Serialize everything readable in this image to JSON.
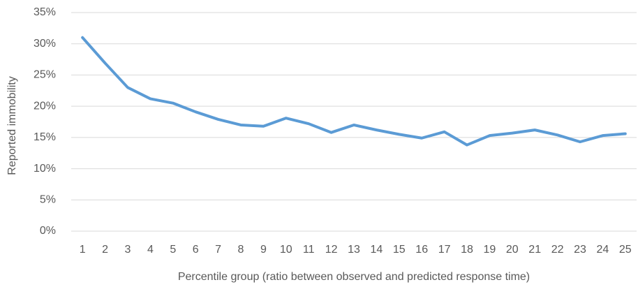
{
  "chart_data": {
    "type": "line",
    "x_label": "Percentile group (ratio between observed and predicted response time)",
    "y_label": "Reported immobility",
    "categories": [
      "1",
      "2",
      "3",
      "4",
      "5",
      "6",
      "7",
      "8",
      "9",
      "10",
      "11",
      "12",
      "13",
      "14",
      "15",
      "16",
      "17",
      "18",
      "19",
      "20",
      "21",
      "22",
      "23",
      "24",
      "25"
    ],
    "series": [
      {
        "name": "Reported immobility",
        "color": "#5b9bd5",
        "values": [
          31.0,
          26.9,
          23.0,
          21.2,
          20.5,
          19.1,
          17.9,
          17.0,
          16.8,
          18.1,
          17.2,
          15.8,
          17.0,
          16.2,
          15.5,
          14.9,
          15.9,
          13.8,
          15.3,
          15.7,
          16.2,
          15.4,
          14.3,
          15.3,
          15.6
        ]
      }
    ],
    "ylim": [
      0,
      35
    ],
    "yticks": [
      {
        "value": 0,
        "label": "0%"
      },
      {
        "value": 5,
        "label": "5%"
      },
      {
        "value": 10,
        "label": "10%"
      },
      {
        "value": 15,
        "label": "15%"
      },
      {
        "value": 20,
        "label": "20%"
      },
      {
        "value": 25,
        "label": "25%"
      },
      {
        "value": 30,
        "label": "30%"
      },
      {
        "value": 35,
        "label": "35%"
      }
    ],
    "grid": true
  }
}
